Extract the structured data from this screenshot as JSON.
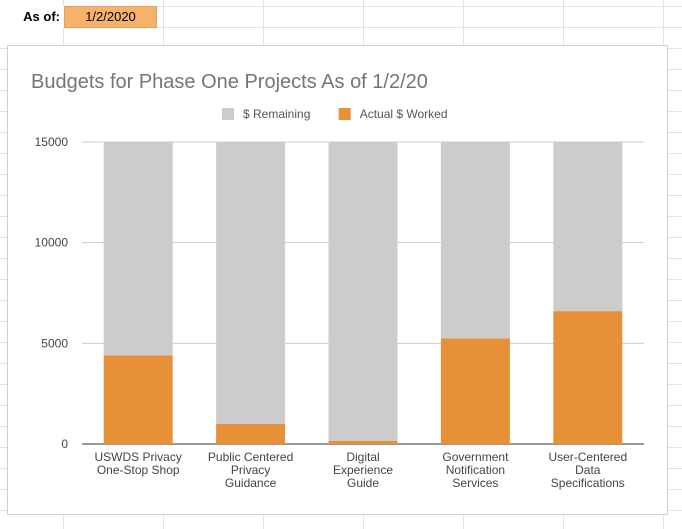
{
  "sheet": {
    "as_of_label": "As of:",
    "as_of_value": "1/2/2020"
  },
  "colors": {
    "remaining": "#cccccc",
    "worked": "#e69138",
    "cell_highlight": "#f6b26b"
  },
  "chart_data": {
    "type": "bar",
    "stacked": true,
    "title": "Budgets for Phase One Projects As of 1/2/20",
    "legend_position": "top",
    "categories": [
      [
        "USWDS Privacy",
        "One-Stop Shop"
      ],
      [
        "Public Centered",
        "Privacy",
        "Guidance"
      ],
      [
        "Digital",
        "Experience",
        "Guide"
      ],
      [
        "Government",
        "Notification",
        "Services"
      ],
      [
        "User-Centered",
        "Data",
        "Specifications"
      ]
    ],
    "series": [
      {
        "name": "Actual $ Worked",
        "values": [
          4400,
          1000,
          150,
          5250,
          6600
        ]
      },
      {
        "name": "$ Remaining",
        "values": [
          10600,
          14000,
          14850,
          9750,
          8400
        ]
      }
    ],
    "legend_order": [
      1,
      0
    ],
    "ylim": [
      0,
      15000
    ],
    "yticks": [
      0,
      5000,
      10000,
      15000
    ],
    "grid": true
  }
}
